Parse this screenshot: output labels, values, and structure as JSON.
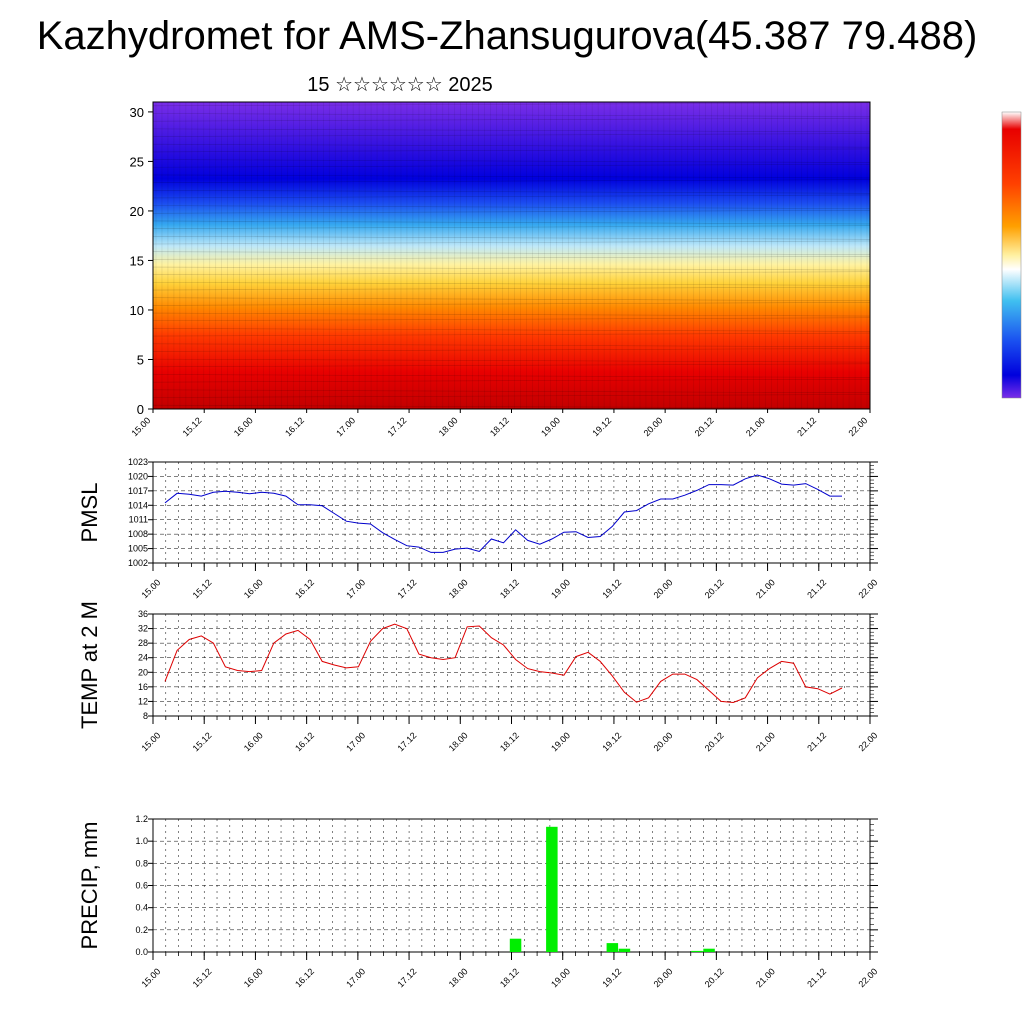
{
  "header": {
    "title": "Kazhydromet for AMS-Zhansugurova(45.387 79.488)",
    "subtitle": "15 ☆☆☆☆☆☆ 2025"
  },
  "colors": {
    "pmsl_line": "#0000cc",
    "temp_line": "#dd0000",
    "precip_bar": "#00ee00",
    "colorbar_top": "#e00000",
    "colorbar_bottom": "#6a1bd8"
  },
  "chart_data": [
    {
      "type": "heatmap",
      "name": "cross-section",
      "x_ticks": [
        "15.00",
        "15.12",
        "16.00",
        "16.12",
        "17.00",
        "17.12",
        "18.00",
        "18.12",
        "19.00",
        "19.12",
        "20.00",
        "20.12",
        "21.00",
        "21.12",
        "22.00"
      ],
      "y_ticks": [
        "0",
        "5",
        "10",
        "15",
        "20",
        "25",
        "30"
      ],
      "ylim": [
        0,
        31
      ]
    },
    {
      "type": "line",
      "name": "pmsl",
      "ylabel": "PMSL",
      "ylim": [
        1002,
        1023
      ],
      "y_ticks": [
        "1002",
        "1005",
        "1008",
        "1011",
        "1014",
        "1017",
        "1020",
        "1023"
      ],
      "x_ticks": [
        "15.00",
        "15.12",
        "16.00",
        "16.12",
        "17.00",
        "17.12",
        "18.00",
        "18.12",
        "19.00",
        "19.12",
        "20.00",
        "20.12",
        "21.00",
        "21.12",
        "22.00"
      ],
      "values": [
        1014.5,
        1016.5,
        1016.3,
        1015.9,
        1016.7,
        1016.9,
        1016.7,
        1016.4,
        1016.7,
        1016.5,
        1015.9,
        1014.1,
        1014.1,
        1013.9,
        1012.3,
        1010.7,
        1010.3,
        1010.1,
        1008.3,
        1006.9,
        1005.6,
        1005.3,
        1004.2,
        1004.2,
        1004.9,
        1005.1,
        1004.4,
        1007.0,
        1006.2,
        1008.9,
        1006.7,
        1005.9,
        1007.0,
        1008.4,
        1008.5,
        1007.3,
        1007.5,
        1009.6,
        1012.6,
        1012.9,
        1014.3,
        1015.3,
        1015.3,
        1016.1,
        1017.1,
        1018.3,
        1018.3,
        1018.2,
        1019.5,
        1020.3,
        1019.5,
        1018.4,
        1018.2,
        1018.5,
        1017.3,
        1015.9,
        1015.9
      ]
    },
    {
      "type": "line",
      "name": "temp",
      "ylabel": "TEMP at 2 M",
      "ylim": [
        8,
        36
      ],
      "y_ticks": [
        "8",
        "12",
        "16",
        "20",
        "24",
        "28",
        "32",
        "36"
      ],
      "x_ticks": [
        "15.00",
        "15.12",
        "16.00",
        "16.12",
        "17.00",
        "17.12",
        "18.00",
        "18.12",
        "19.00",
        "19.12",
        "20.00",
        "20.12",
        "21.00",
        "21.12",
        "22.00"
      ],
      "values": [
        17.5,
        26.0,
        29.0,
        30.0,
        28.0,
        21.5,
        20.5,
        20.2,
        20.5,
        28.0,
        30.5,
        31.5,
        29.0,
        23.0,
        22.0,
        21.2,
        21.5,
        28.5,
        32.0,
        33.2,
        32.0,
        25.0,
        24.0,
        23.5,
        24.0,
        32.5,
        32.7,
        29.5,
        27.5,
        23.5,
        21.0,
        20.2,
        19.8,
        19.2,
        24.3,
        25.5,
        23.0,
        19.0,
        14.5,
        11.8,
        13.0,
        17.5,
        19.5,
        19.5,
        18.0,
        15.0,
        12.0,
        11.7,
        13.0,
        18.5,
        21.0,
        23.0,
        22.5,
        16.0,
        15.5,
        14.0,
        15.7
      ]
    },
    {
      "type": "bar",
      "name": "precip",
      "ylabel": "PRECIP, mm",
      "ylim": [
        0,
        1.2
      ],
      "y_ticks": [
        "0.0",
        "0.2",
        "0.4",
        "0.6",
        "0.8",
        "1.0",
        "1.2"
      ],
      "x_ticks": [
        "15.00",
        "15.12",
        "16.00",
        "16.12",
        "17.00",
        "17.12",
        "18.00",
        "18.12",
        "19.00",
        "19.12",
        "20.00",
        "20.12",
        "21.00",
        "21.12",
        "22.00"
      ],
      "values": [
        0,
        0,
        0,
        0,
        0,
        0,
        0,
        0,
        0,
        0,
        0,
        0,
        0,
        0,
        0,
        0,
        0,
        0,
        0,
        0,
        0,
        0,
        0,
        0,
        0,
        0,
        0,
        0,
        0,
        0.12,
        0,
        0,
        1.13,
        0,
        0,
        0,
        0,
        0.08,
        0.03,
        0,
        0,
        0,
        0,
        0,
        0.01,
        0.03,
        0,
        0,
        0,
        0,
        0,
        0,
        0,
        0,
        0,
        0,
        0
      ]
    }
  ]
}
